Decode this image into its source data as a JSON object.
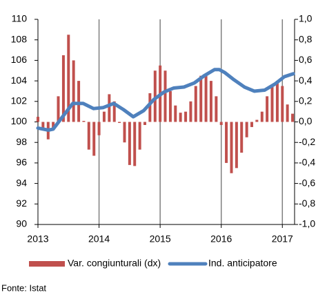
{
  "chart_data": {
    "type": "bar_line",
    "xlim": [
      2013,
      2017.2
    ],
    "xticks": [
      2013,
      2014,
      2015,
      2016,
      2017
    ],
    "ylim": [
      90,
      110
    ],
    "yticks": [
      90,
      92,
      94,
      96,
      98,
      100,
      102,
      104,
      106,
      108,
      110
    ],
    "y2lim": [
      -1,
      1
    ],
    "y2ticks": [
      {
        "value": -1,
        "label": "-1,0"
      },
      {
        "value": -0.8,
        "label": "-0,8"
      },
      {
        "value": -0.6,
        "label": "-0,6"
      },
      {
        "value": -0.4,
        "label": "-0,4"
      },
      {
        "value": -0.2,
        "label": "-0,2"
      },
      {
        "value": 0,
        "label": "0,0"
      },
      {
        "value": 0.2,
        "label": "0,2"
      },
      {
        "value": 0.4,
        "label": "0,4"
      },
      {
        "value": 0.6,
        "label": "0,6"
      },
      {
        "value": 0.8,
        "label": "0,8"
      },
      {
        "value": 1,
        "label": "1,0"
      }
    ],
    "series": [
      {
        "name": "Var. congiunturali (dx)",
        "type": "bar",
        "axis": "y2",
        "color": "#c0504d",
        "x": [
          2013.0,
          2013.083,
          2013.167,
          2013.25,
          2013.333,
          2013.417,
          2013.5,
          2013.583,
          2013.667,
          2013.75,
          2013.833,
          2013.917,
          2014.0,
          2014.083,
          2014.167,
          2014.25,
          2014.333,
          2014.417,
          2014.5,
          2014.583,
          2014.667,
          2014.75,
          2014.833,
          2014.917,
          2015.0,
          2015.083,
          2015.167,
          2015.25,
          2015.333,
          2015.417,
          2015.5,
          2015.583,
          2015.667,
          2015.75,
          2015.833,
          2015.917,
          2016.0,
          2016.083,
          2016.167,
          2016.25,
          2016.333,
          2016.417,
          2016.5,
          2016.583,
          2016.667,
          2016.75,
          2016.833,
          2016.917,
          2017.0,
          2017.083,
          2017.167
        ],
        "values": [
          0.05,
          -0.08,
          -0.17,
          -0.08,
          0.25,
          0.65,
          0.85,
          0.6,
          0.4,
          0.01,
          -0.27,
          -0.33,
          -0.13,
          0.1,
          0.27,
          0.2,
          -0.01,
          -0.2,
          -0.42,
          -0.43,
          -0.27,
          -0.03,
          0.28,
          0.5,
          0.55,
          0.5,
          0.3,
          0.16,
          0.09,
          0.1,
          0.2,
          0.35,
          0.45,
          0.45,
          0.4,
          0.25,
          -0.03,
          -0.4,
          -0.5,
          -0.45,
          -0.3,
          -0.15,
          -0.05,
          0.02,
          0.1,
          0.25,
          0.35,
          0.4,
          0.35,
          0.17,
          0.08
        ]
      },
      {
        "name": "Ind. anticipatore",
        "type": "line",
        "color": "#4f81bd",
        "x": [
          2013.0,
          2013.17,
          2013.25,
          2013.39,
          2013.57,
          2013.74,
          2013.91,
          2014.07,
          2014.24,
          2014.4,
          2014.56,
          2014.73,
          2014.9,
          2015.06,
          2015.22,
          2015.39,
          2015.56,
          2015.72,
          2015.89,
          2015.97,
          2016.06,
          2016.21,
          2016.38,
          2016.54,
          2016.71,
          2016.88,
          2017.03,
          2017.18
        ],
        "values": [
          99.4,
          99.2,
          99.3,
          100.4,
          101.8,
          101.8,
          101.3,
          101.4,
          101.8,
          101.2,
          100.5,
          101.1,
          102.2,
          102.9,
          103.3,
          103.4,
          103.8,
          104.5,
          105.1,
          105.1,
          104.8,
          104.1,
          103.4,
          103.0,
          103.1,
          103.7,
          104.4,
          104.7
        ]
      }
    ],
    "source": "Fonte: Istat"
  }
}
